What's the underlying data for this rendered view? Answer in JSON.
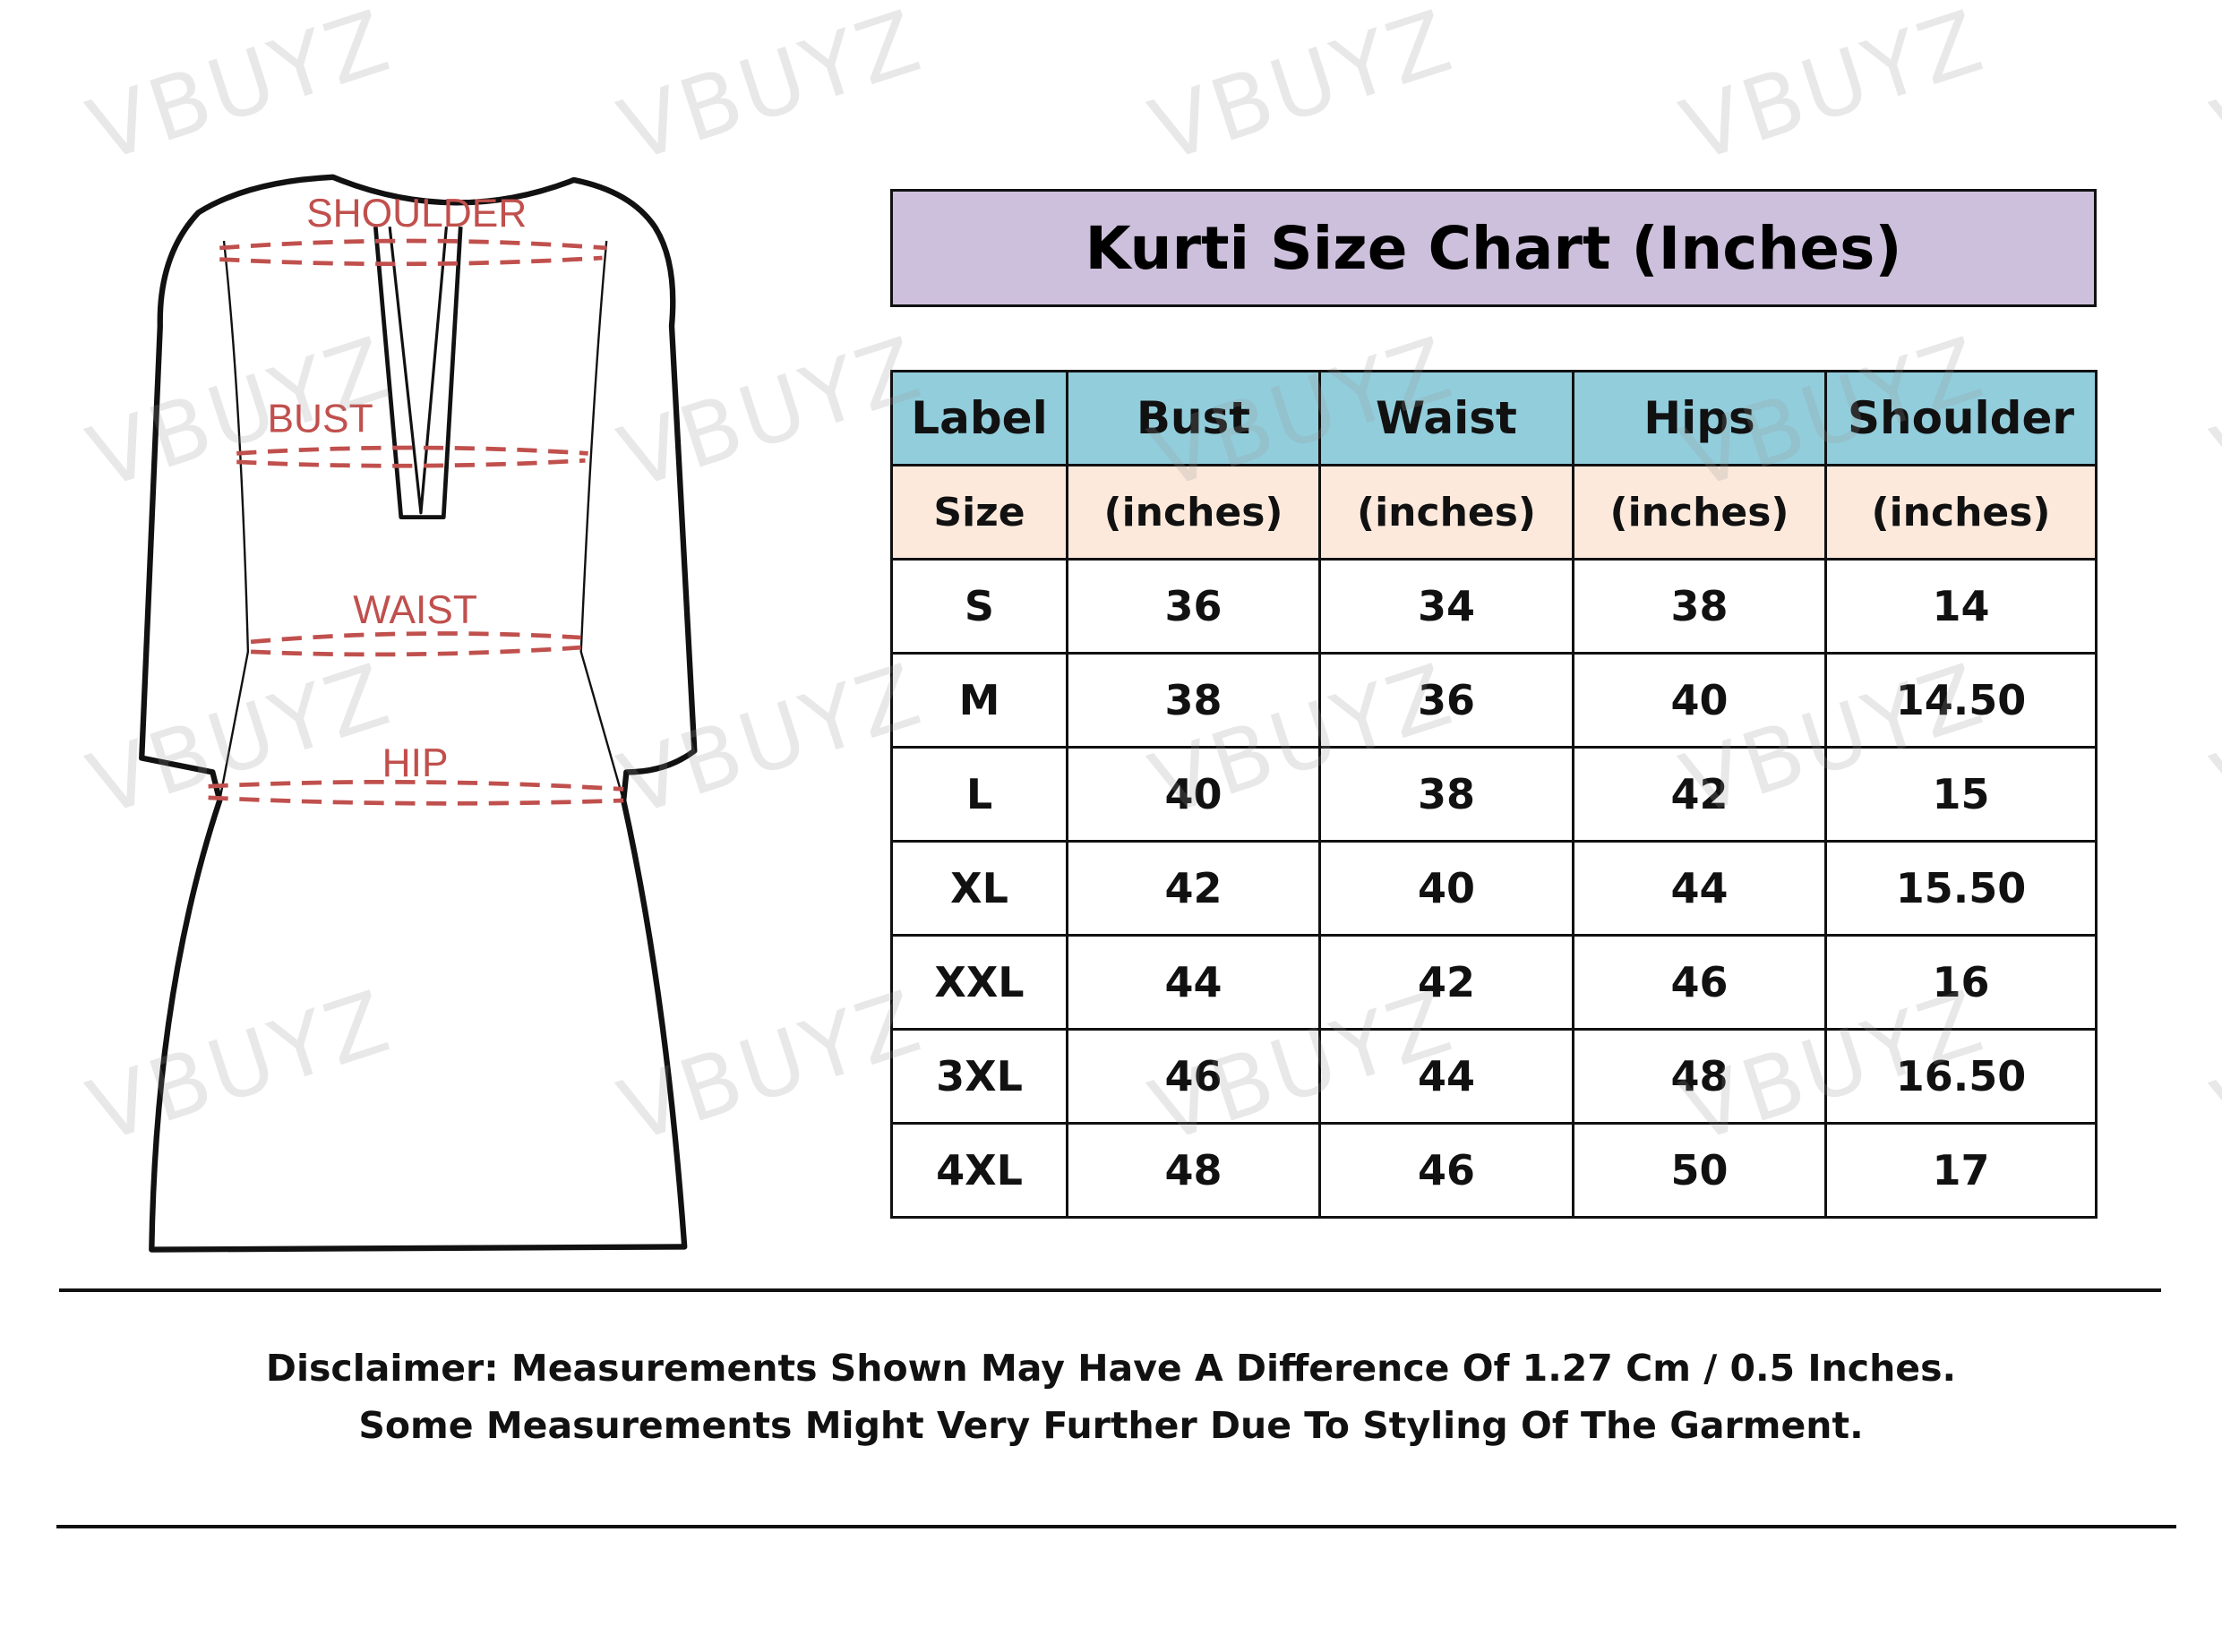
{
  "watermark": "VBUYZ",
  "diagram": {
    "labels": {
      "shoulder": "SHOULDER",
      "bust": "BUST",
      "waist": "WAIST",
      "hip": "HIP"
    },
    "label_color": "#c0504d"
  },
  "title": "Kurti Size Chart (Inches)",
  "colors": {
    "title_bg": "#cdc0dc",
    "header_bg": "#92cddc",
    "subheader_bg": "#fce9db"
  },
  "table": {
    "headers": [
      "Label",
      "Bust",
      "Waist",
      "Hips",
      "Shoulder"
    ],
    "subheaders": [
      "Size",
      "(inches)",
      "(inches)",
      "(inches)",
      "(inches)"
    ],
    "rows": [
      [
        "S",
        "36",
        "34",
        "38",
        "14"
      ],
      [
        "M",
        "38",
        "36",
        "40",
        "14.50"
      ],
      [
        "L",
        "40",
        "38",
        "42",
        "15"
      ],
      [
        "XL",
        "42",
        "40",
        "44",
        "15.50"
      ],
      [
        "XXL",
        "44",
        "42",
        "46",
        "16"
      ],
      [
        "3XL",
        "46",
        "44",
        "48",
        "16.50"
      ],
      [
        "4XL",
        "48",
        "46",
        "50",
        "17"
      ]
    ]
  },
  "disclaimer": {
    "line1": "Disclaimer: Measurements Shown May Have A Difference Of 1.27 Cm / 0.5 Inches.",
    "line2": "Some Measurements Might Very Further Due To Styling Of The Garment."
  }
}
